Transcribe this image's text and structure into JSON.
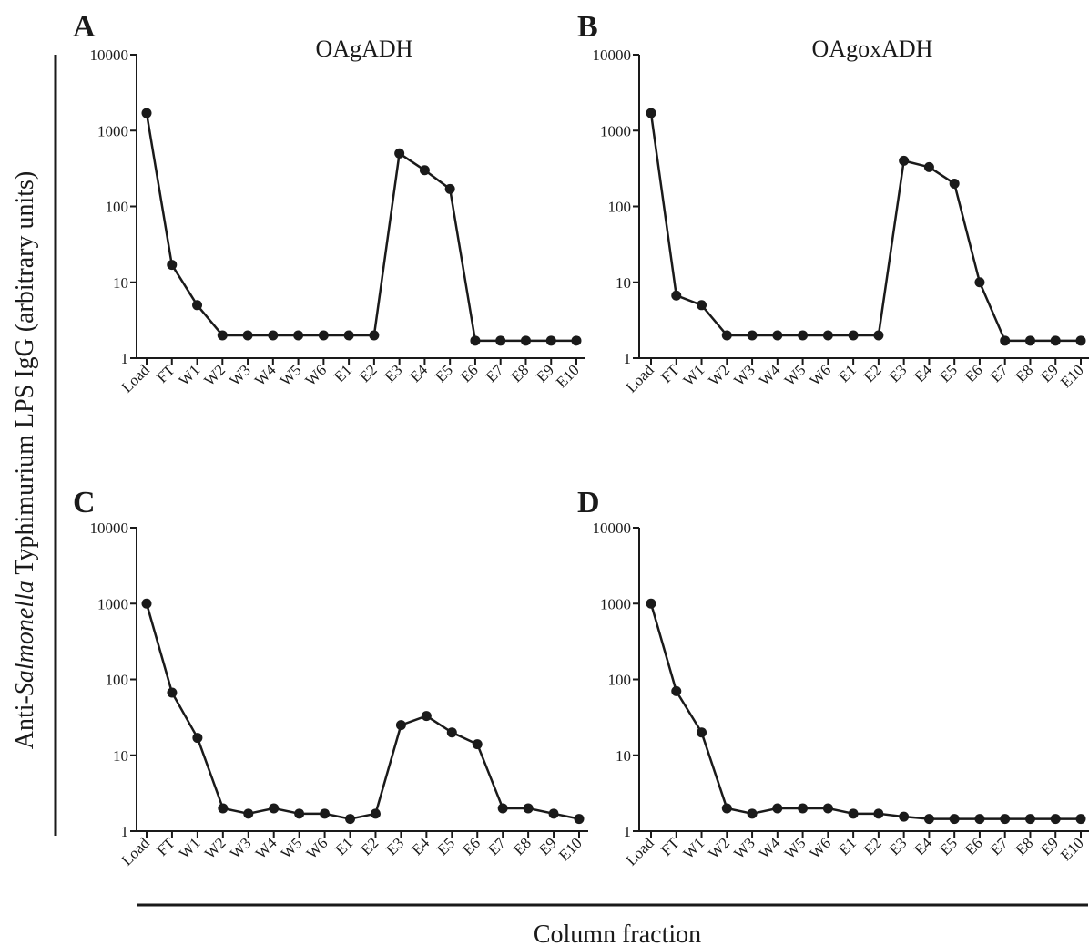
{
  "figure": {
    "ylabel_prefix": "Anti-",
    "ylabel_italic": "Salmonella",
    "ylabel_suffix": " Typhimurium LPS IgG (arbitrary units)",
    "xlabel": "Column fraction"
  },
  "chart_data": [
    {
      "panel": "A",
      "type": "line",
      "title": "OAgADH",
      "yscale": "log",
      "ylim": [
        1,
        10000
      ],
      "yticks": [
        "1",
        "10",
        "100",
        "1000",
        "10000"
      ],
      "categories": [
        "Load",
        "FT",
        "W1",
        "W2",
        "W3",
        "W4",
        "W5",
        "W6",
        "E1",
        "E2",
        "E3",
        "E4",
        "E5",
        "E6",
        "E7",
        "E8",
        "E9",
        "E10"
      ],
      "values": [
        1700,
        17,
        5,
        2,
        2,
        2,
        2,
        2,
        2,
        2,
        500,
        300,
        170,
        1.7,
        1.7,
        1.7,
        1.7,
        1.7
      ]
    },
    {
      "panel": "B",
      "type": "line",
      "title": "OAgoxADH",
      "yscale": "log",
      "ylim": [
        1,
        10000
      ],
      "yticks": [
        "1",
        "10",
        "100",
        "1000",
        "10000"
      ],
      "categories": [
        "Load",
        "FT",
        "W1",
        "W2",
        "W3",
        "W4",
        "W5",
        "W6",
        "E1",
        "E2",
        "E3",
        "E4",
        "E5",
        "E6",
        "E7",
        "E8",
        "E9",
        "E10"
      ],
      "values": [
        1700,
        6.7,
        5,
        2,
        2,
        2,
        2,
        2,
        2,
        2,
        400,
        330,
        200,
        10,
        1.7,
        1.7,
        1.7,
        1.7
      ]
    },
    {
      "panel": "C",
      "type": "line",
      "title": "",
      "yscale": "log",
      "ylim": [
        1,
        10000
      ],
      "yticks": [
        "1",
        "10",
        "100",
        "1000",
        "10000"
      ],
      "categories": [
        "Load",
        "FT",
        "W1",
        "W2",
        "W3",
        "W4",
        "W5",
        "W6",
        "E1",
        "E2",
        "E3",
        "E4",
        "E5",
        "E6",
        "E7",
        "E8",
        "E9",
        "E10"
      ],
      "values": [
        1000,
        67,
        17,
        2,
        1.7,
        2,
        1.7,
        1.7,
        1.45,
        1.7,
        25,
        33,
        20,
        14,
        2,
        2,
        1.7,
        1.45
      ]
    },
    {
      "panel": "D",
      "type": "line",
      "title": "",
      "yscale": "log",
      "ylim": [
        1,
        10000
      ],
      "yticks": [
        "1",
        "10",
        "100",
        "1000",
        "10000"
      ],
      "categories": [
        "Load",
        "FT",
        "W1",
        "W2",
        "W3",
        "W4",
        "W5",
        "W6",
        "E1",
        "E2",
        "E3",
        "E4",
        "E5",
        "E6",
        "E7",
        "E8",
        "E9",
        "E10"
      ],
      "values": [
        1000,
        70,
        20,
        2,
        1.7,
        2,
        2,
        2,
        1.7,
        1.7,
        1.55,
        1.45,
        1.45,
        1.45,
        1.45,
        1.45,
        1.45,
        1.45
      ]
    }
  ]
}
